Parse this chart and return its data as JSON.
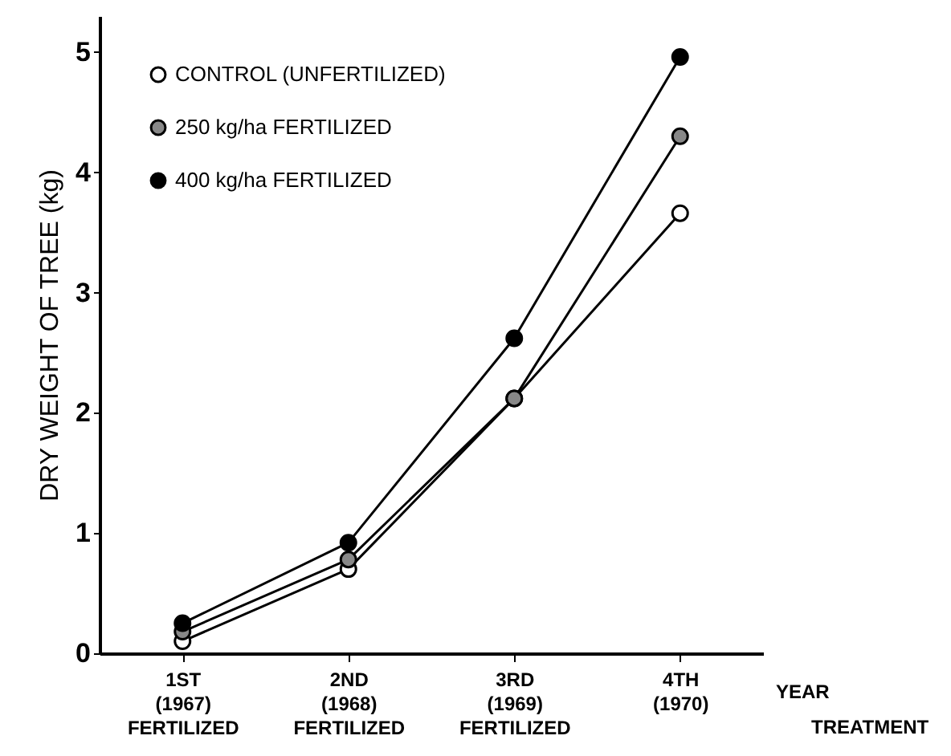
{
  "chart_data": {
    "type": "line",
    "xlabel": null,
    "ylabel": "DRY WEIGHT OF TREE (kg)",
    "categories": [
      "1ST\n(1967)\nFERTILIZED",
      "2ND\n(1968)\nFERTILIZED",
      "3RD\n(1969)\nFERTILIZED",
      "4TH\n(1970)"
    ],
    "series": [
      {
        "name": "CONTROL (UNFERTILIZED)",
        "color": "#000000",
        "values": [
          0.1,
          0.7,
          2.12,
          3.66
        ]
      },
      {
        "name": "250 kg/ha FERTILIZED",
        "color": "#000000",
        "values": [
          0.18,
          0.78,
          2.12,
          4.3
        ]
      },
      {
        "name": "400 kg/ha FERTILIZED",
        "color": "#000000",
        "values": [
          0.25,
          0.92,
          2.62,
          4.96
        ]
      }
    ],
    "ylim": [
      0,
      5.3
    ],
    "yticks": [
      0,
      1,
      2,
      3,
      4,
      5
    ],
    "grid": false,
    "legend": "top left",
    "marker": "circle",
    "annotations": [
      "YEAR",
      "TREATMENT"
    ]
  }
}
